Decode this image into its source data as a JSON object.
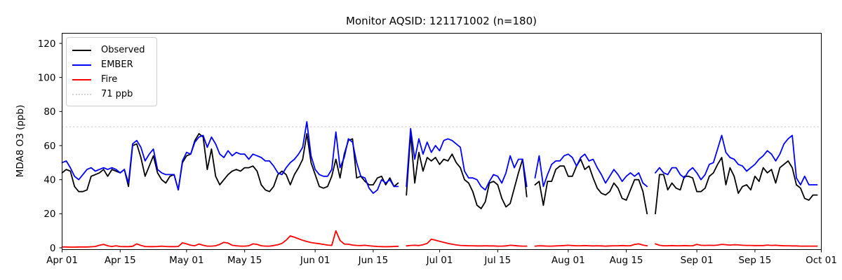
{
  "chart_data": {
    "type": "line",
    "title": "Monitor AQSID: 121171002 (n=180)",
    "ylabel": "MDA8 O3 (ppb)",
    "xlabel": "",
    "grid": false,
    "legend_position": "upper left",
    "n_days": 183,
    "x_start_label": "Apr 01",
    "x_end_label": "Oct 01",
    "ylim": [
      0,
      126
    ],
    "y_ticks": [
      0,
      20,
      40,
      60,
      80,
      100,
      120
    ],
    "x_ticks": [
      {
        "day": 0,
        "label": "Apr 01"
      },
      {
        "day": 14,
        "label": "Apr 15"
      },
      {
        "day": 30,
        "label": "May 01"
      },
      {
        "day": 44,
        "label": "May 15"
      },
      {
        "day": 61,
        "label": "Jun 01"
      },
      {
        "day": 75,
        "label": "Jun 15"
      },
      {
        "day": 91,
        "label": "Jul 01"
      },
      {
        "day": 105,
        "label": "Jul 15"
      },
      {
        "day": 122,
        "label": "Aug 01"
      },
      {
        "day": 136,
        "label": "Aug 15"
      },
      {
        "day": 153,
        "label": "Sep 01"
      },
      {
        "day": 167,
        "label": "Sep 15"
      },
      {
        "day": 183,
        "label": "Oct 01"
      }
    ],
    "threshold": {
      "value": 71,
      "label": "71 ppb",
      "color": "#d3d3d3",
      "style": "dotted"
    },
    "series": [
      {
        "name": "Observed",
        "color": "#000000",
        "values": [
          44,
          46,
          45,
          36,
          33,
          33,
          34,
          42,
          43,
          44,
          46,
          42,
          46,
          45,
          44,
          46,
          36,
          60,
          61,
          53,
          42,
          48,
          54,
          44,
          40,
          38,
          42,
          43,
          34,
          50,
          54,
          55,
          63,
          67,
          65,
          46,
          58,
          42,
          37,
          40,
          43,
          45,
          46,
          45,
          47,
          47,
          48,
          45,
          37,
          34,
          33,
          36,
          43,
          45,
          43,
          37,
          43,
          47,
          52,
          67,
          50,
          43,
          36,
          35,
          36,
          42,
          52,
          41,
          55,
          63,
          64,
          41,
          42,
          39,
          37,
          37,
          41,
          42,
          37,
          41,
          36,
          38,
          null,
          31,
          67,
          38,
          56,
          45,
          53,
          51,
          53,
          49,
          52,
          51,
          55,
          50,
          47,
          40,
          38,
          33,
          25,
          23,
          27,
          38,
          39,
          37,
          29,
          24,
          26,
          35,
          44,
          52,
          30,
          null,
          37,
          39,
          25,
          39,
          39,
          46,
          48,
          48,
          42,
          42,
          48,
          52,
          46,
          48,
          41,
          35,
          32,
          31,
          33,
          38,
          35,
          29,
          28,
          34,
          40,
          40,
          33,
          20,
          null,
          20,
          43,
          43,
          34,
          38,
          35,
          34,
          42,
          42,
          41,
          33,
          33,
          35,
          42,
          44,
          49,
          53,
          37,
          47,
          42,
          32,
          36,
          37,
          34,
          42,
          39,
          47,
          44,
          46,
          38,
          47,
          49,
          51,
          47,
          37,
          35,
          29,
          28,
          31,
          31
        ]
      },
      {
        "name": "EMBER",
        "color": "#0000ff",
        "values": [
          50,
          51,
          47,
          42,
          40,
          43,
          46,
          47,
          45,
          46,
          47,
          46,
          47,
          46,
          44,
          46,
          38,
          61,
          63,
          59,
          51,
          55,
          58,
          46,
          44,
          43,
          43,
          43,
          34,
          51,
          56,
          55,
          62,
          65,
          66,
          59,
          65,
          61,
          55,
          53,
          57,
          54,
          56,
          55,
          55,
          52,
          55,
          54,
          53,
          51,
          51,
          48,
          44,
          43,
          47,
          50,
          52,
          55,
          59,
          74,
          54,
          46,
          43,
          42,
          42,
          46,
          68,
          47,
          53,
          64,
          62,
          50,
          42,
          41,
          35,
          32,
          34,
          40,
          38,
          40,
          36,
          36,
          null,
          36,
          70,
          52,
          64,
          55,
          62,
          56,
          60,
          57,
          63,
          64,
          63,
          61,
          59,
          45,
          41,
          41,
          40,
          36,
          34,
          39,
          43,
          42,
          38,
          44,
          54,
          47,
          52,
          52,
          36,
          null,
          41,
          54,
          36,
          43,
          49,
          51,
          51,
          54,
          55,
          53,
          48,
          53,
          55,
          51,
          52,
          47,
          43,
          38,
          42,
          46,
          43,
          39,
          42,
          44,
          42,
          44,
          38,
          36,
          null,
          44,
          47,
          44,
          43,
          47,
          47,
          43,
          41,
          45,
          47,
          44,
          40,
          43,
          49,
          50,
          58,
          66,
          56,
          53,
          52,
          49,
          48,
          45,
          47,
          49,
          52,
          54,
          57,
          55,
          51,
          55,
          61,
          64,
          66,
          41,
          37,
          42,
          37,
          37,
          37
        ]
      },
      {
        "name": "Fire",
        "color": "#ff0000",
        "values": [
          0.5,
          0.5,
          0.4,
          0.4,
          0.5,
          0.5,
          0.5,
          0.6,
          0.8,
          1.5,
          2,
          1.2,
          0.8,
          1.2,
          0.8,
          0.7,
          0.7,
          0.9,
          2.3,
          1.4,
          0.8,
          0.7,
          0.7,
          0.8,
          1,
          0.8,
          0.7,
          0.7,
          0.8,
          2.9,
          2.3,
          1.5,
          1.2,
          2.2,
          1.5,
          1,
          1,
          1.2,
          2,
          3.2,
          2.8,
          1.5,
          1.2,
          1,
          1,
          1.2,
          2.3,
          2,
          1.2,
          1,
          1,
          1.3,
          1.8,
          2.6,
          4.5,
          7,
          6.2,
          5.3,
          4.4,
          3.7,
          3.1,
          2.7,
          2.4,
          2,
          1.6,
          1.4,
          10,
          4.3,
          2.2,
          2.1,
          1.6,
          1.4,
          1.3,
          1.5,
          1.2,
          1,
          0.8,
          0.7,
          0.6,
          0.7,
          0.8,
          0.9,
          null,
          1.1,
          1.4,
          1.5,
          1.3,
          1.8,
          2.6,
          5,
          4.5,
          3.8,
          3.2,
          2.6,
          2.1,
          1.7,
          1.4,
          1.3,
          1.2,
          1.2,
          1.1,
          1.1,
          1.2,
          1.1,
          1.1,
          1,
          1,
          1.1,
          1.5,
          1.3,
          1.1,
          1,
          1,
          null,
          1,
          1.2,
          1.1,
          1,
          1,
          1.1,
          1.2,
          1.3,
          1.5,
          1.3,
          1.2,
          1.2,
          1.3,
          1.2,
          1.1,
          1.2,
          1.1,
          1,
          1.1,
          1.2,
          1.2,
          1.3,
          1.2,
          1.2,
          2,
          2.3,
          1.6,
          1.2,
          null,
          2.3,
          1.5,
          1.2,
          1.2,
          1.3,
          1.2,
          1.2,
          1.3,
          1.2,
          1.2,
          2,
          1.5,
          1.4,
          1.5,
          1.4,
          1.6,
          2,
          1.8,
          1.6,
          1.8,
          1.7,
          1.5,
          1.4,
          1.4,
          1.3,
          1.3,
          1.3,
          1.6,
          1.4,
          1.5,
          1.3,
          1.2,
          1.2,
          1.1,
          1.1,
          1,
          1,
          1,
          1,
          1
        ]
      }
    ]
  }
}
